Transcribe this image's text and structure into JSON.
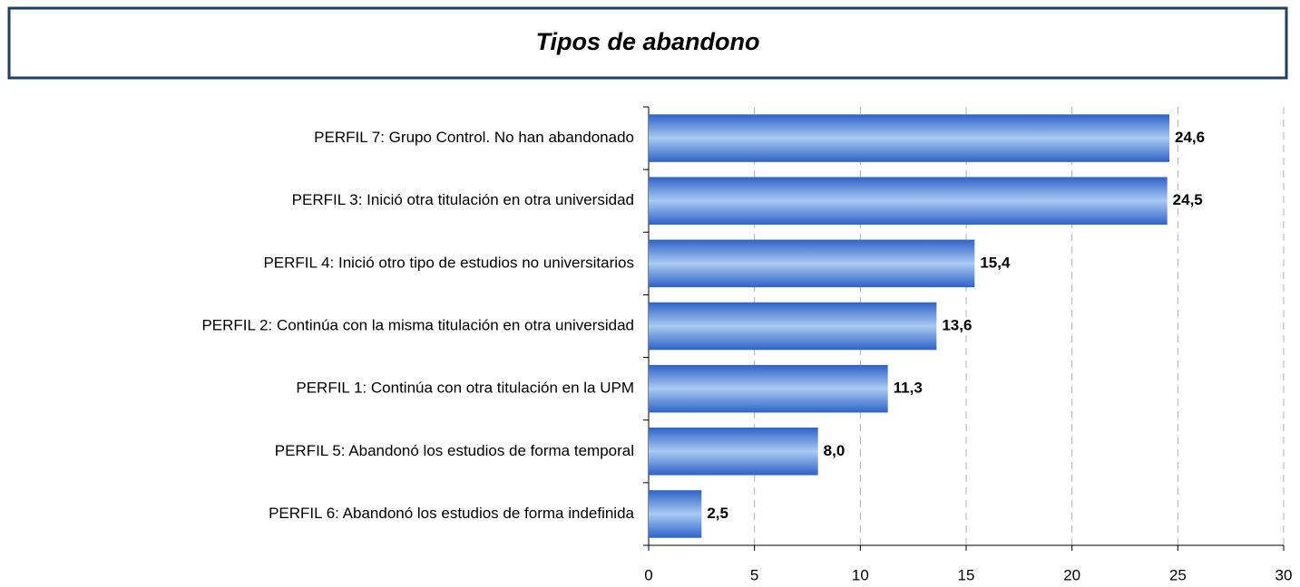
{
  "chart_data": {
    "type": "bar",
    "orientation": "horizontal",
    "title": "Tipos de abandono",
    "categories": [
      "PERFIL 7: Grupo Control. No han abandonado",
      "PERFIL 3: Inició otra titulación en otra universidad",
      "PERFIL 4: Inició otro tipo de estudios no universitarios",
      "PERFIL 2: Continúa con la misma titulación en otra universidad",
      "PERFIL 1: Continúa con otra titulación en la UPM",
      "PERFIL 5: Abandonó los estudios de forma temporal",
      "PERFIL 6: Abandonó los estudios de forma indefinida"
    ],
    "values": [
      24.6,
      24.5,
      15.4,
      13.6,
      11.3,
      8.0,
      2.5
    ],
    "value_labels": [
      "24,6",
      "24,5",
      "15,4",
      "13,6",
      "11,3",
      "8,0",
      "2,5"
    ],
    "color": "#2e62c8",
    "xlim": [
      0,
      30
    ],
    "xticks": [
      0,
      5,
      10,
      15,
      20,
      25,
      30
    ],
    "grid": true
  }
}
